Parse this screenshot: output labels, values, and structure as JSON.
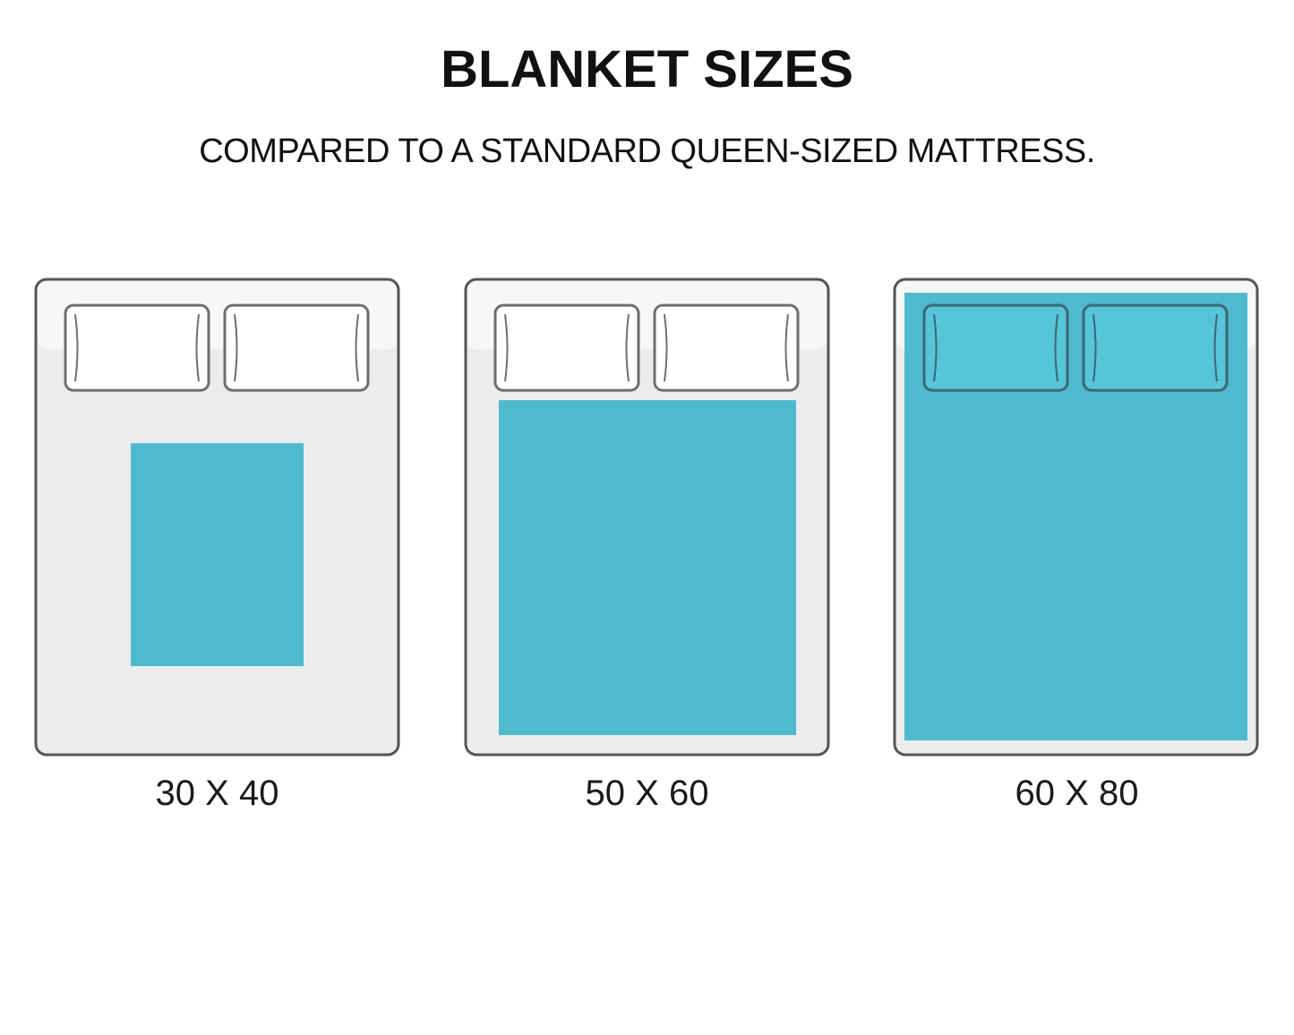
{
  "title": "BLANKET SIZES",
  "subtitle": "COMPARED TO A STANDARD QUEEN-SIZED MATTRESS.",
  "colors": {
    "blanket": "#4fb9cd",
    "mattress_top": "#f6f7f8",
    "mattress_bottom": "#ebecee",
    "outline": "#555555",
    "pillow_on_blanket": "#57c5d8"
  },
  "beds": [
    {
      "label": "30 X 40"
    },
    {
      "label": "50 X 60"
    },
    {
      "label": "60 X 80"
    }
  ]
}
